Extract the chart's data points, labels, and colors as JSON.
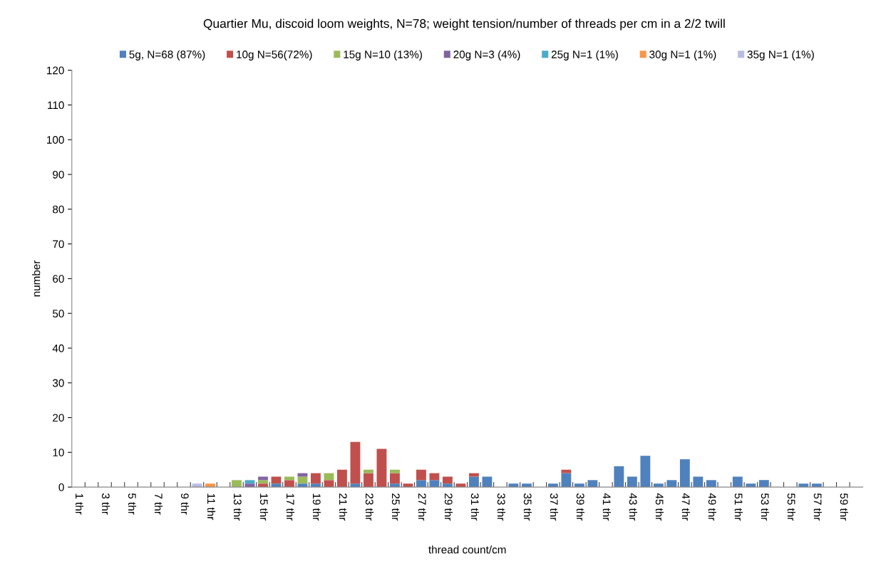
{
  "chart_data": {
    "type": "bar",
    "stacked": true,
    "title": "Quartier Mu, discoid loom weights, N=78; weight tension/number of threads per cm in a 2/2 twill",
    "xlabel": "thread count/cm",
    "ylabel": "number",
    "categories": [
      "1 thr",
      null,
      "3 thr",
      null,
      "5 thr",
      null,
      "7 thr",
      null,
      "9 thr",
      null,
      "11 thr",
      null,
      "13 thr",
      null,
      "15 thr",
      null,
      "17 thr",
      null,
      "19 thr",
      null,
      "21 thr",
      null,
      "23 thr",
      null,
      "25 thr",
      null,
      "27 thr",
      null,
      "29 thr",
      null,
      "31 thr",
      null,
      "33 thr",
      null,
      "35 thr",
      null,
      "37 thr",
      null,
      "39 thr",
      null,
      "41 thr",
      null,
      "43 thr",
      null,
      "45 thr",
      null,
      "47 thr",
      null,
      "49 thr",
      null,
      "51 thr",
      null,
      "53 thr",
      null,
      "55 thr",
      null,
      "57 thr",
      null,
      "59 thr",
      null
    ],
    "series": [
      {
        "name": "5g, N=68 (87%)",
        "color": "#4f81bd",
        "values": [
          0,
          0,
          0,
          0,
          0,
          0,
          0,
          0,
          0,
          0,
          0,
          0,
          0,
          0,
          0,
          1,
          0,
          1,
          1,
          0,
          0,
          1,
          0,
          0,
          1,
          0,
          2,
          2,
          1,
          0,
          3,
          3,
          0,
          1,
          1,
          0,
          1,
          4,
          1,
          2,
          0,
          6,
          3,
          9,
          1,
          2,
          8,
          3,
          2,
          0,
          3,
          1,
          2,
          0,
          0,
          1,
          1,
          0,
          0,
          0
        ]
      },
      {
        "name": "10g N=56(72%)",
        "color": "#c0504d",
        "values": [
          0,
          0,
          0,
          0,
          0,
          0,
          0,
          0,
          0,
          0,
          0,
          0,
          0,
          0,
          1,
          2,
          2,
          0,
          3,
          2,
          5,
          12,
          4,
          11,
          3,
          1,
          3,
          2,
          2,
          1,
          1,
          0,
          0,
          0,
          0,
          0,
          0,
          1,
          0,
          0,
          0,
          0,
          0,
          0,
          0,
          0,
          0,
          0,
          0,
          0,
          0,
          0,
          0,
          0,
          0,
          0,
          0,
          0,
          0,
          0
        ]
      },
      {
        "name": "15g N=10 (13%)",
        "color": "#9bbb59",
        "values": [
          0,
          0,
          0,
          0,
          0,
          0,
          0,
          0,
          0,
          0,
          0,
          0,
          2,
          0,
          1,
          0,
          1,
          2,
          0,
          2,
          0,
          0,
          1,
          0,
          1,
          0,
          0,
          0,
          0,
          0,
          0,
          0,
          0,
          0,
          0,
          0,
          0,
          0,
          0,
          0,
          0,
          0,
          0,
          0,
          0,
          0,
          0,
          0,
          0,
          0,
          0,
          0,
          0,
          0,
          0,
          0,
          0,
          0,
          0,
          0
        ]
      },
      {
        "name": "20g N=3 (4%)",
        "color": "#8064a2",
        "values": [
          0,
          0,
          0,
          0,
          0,
          0,
          0,
          0,
          0,
          0,
          0,
          0,
          0,
          1,
          1,
          0,
          0,
          1,
          0,
          0,
          0,
          0,
          0,
          0,
          0,
          0,
          0,
          0,
          0,
          0,
          0,
          0,
          0,
          0,
          0,
          0,
          0,
          0,
          0,
          0,
          0,
          0,
          0,
          0,
          0,
          0,
          0,
          0,
          0,
          0,
          0,
          0,
          0,
          0,
          0,
          0,
          0,
          0,
          0,
          0
        ]
      },
      {
        "name": "25g N=1 (1%)",
        "color": "#4bacc6",
        "values": [
          0,
          0,
          0,
          0,
          0,
          0,
          0,
          0,
          0,
          0,
          0,
          0,
          0,
          1,
          0,
          0,
          0,
          0,
          0,
          0,
          0,
          0,
          0,
          0,
          0,
          0,
          0,
          0,
          0,
          0,
          0,
          0,
          0,
          0,
          0,
          0,
          0,
          0,
          0,
          0,
          0,
          0,
          0,
          0,
          0,
          0,
          0,
          0,
          0,
          0,
          0,
          0,
          0,
          0,
          0,
          0,
          0,
          0,
          0,
          0
        ]
      },
      {
        "name": "30g N=1 (1%)",
        "color": "#f79646",
        "values": [
          0,
          0,
          0,
          0,
          0,
          0,
          0,
          0,
          0,
          0,
          1,
          0,
          0,
          0,
          0,
          0,
          0,
          0,
          0,
          0,
          0,
          0,
          0,
          0,
          0,
          0,
          0,
          0,
          0,
          0,
          0,
          0,
          0,
          0,
          0,
          0,
          0,
          0,
          0,
          0,
          0,
          0,
          0,
          0,
          0,
          0,
          0,
          0,
          0,
          0,
          0,
          0,
          0,
          0,
          0,
          0,
          0,
          0,
          0,
          0
        ]
      },
      {
        "name": "35g N=1 (1%)",
        "color": "#b8bde3",
        "values": [
          0,
          0,
          0,
          0,
          0,
          0,
          0,
          0,
          0,
          1,
          0,
          0,
          0,
          0,
          0,
          0,
          0,
          0,
          0,
          0,
          0,
          0,
          0,
          0,
          0,
          0,
          0,
          0,
          0,
          0,
          0,
          0,
          0,
          0,
          0,
          0,
          0,
          0,
          0,
          0,
          0,
          0,
          0,
          0,
          0,
          0,
          0,
          0,
          0,
          0,
          0,
          0,
          0,
          0,
          0,
          0,
          0,
          0,
          0,
          0
        ]
      }
    ],
    "ylim": [
      0,
      120
    ],
    "yticks": [
      0,
      10,
      20,
      30,
      40,
      50,
      60,
      70,
      80,
      90,
      100,
      110,
      120
    ],
    "legend": "top",
    "grid": false
  }
}
